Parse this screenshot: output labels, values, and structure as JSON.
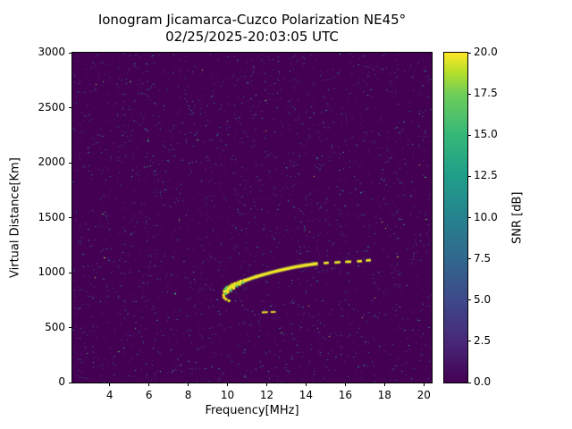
{
  "figure": {
    "title_line1": "Ionogram Jicamarca-Cuzco Polarization NE45°",
    "title_line2": "02/25/2025-20:03:05 UTC",
    "xlabel": "Frequency[MHz]",
    "ylabel": "Virtual Distance[Km]",
    "colorbar_label": "SNR [dB]"
  },
  "chart_data": {
    "type": "heatmap",
    "title": "Ionogram Jicamarca-Cuzco Polarization NE45°",
    "subtitle": "02/25/2025-20:03:05 UTC",
    "xlabel": "Frequency[MHz]",
    "ylabel": "Virtual Distance[Km]",
    "xlim": [
      2.1,
      20.4
    ],
    "ylim": [
      0,
      3000
    ],
    "x_ticks": [
      4,
      6,
      8,
      10,
      12,
      14,
      16,
      18,
      20
    ],
    "y_ticks": [
      0,
      500,
      1000,
      1500,
      2000,
      2500,
      3000
    ],
    "colorbar": {
      "label": "SNR [dB]",
      "min": 0,
      "max": 20,
      "tick_labels": [
        "0.0",
        "2.5",
        "5.0",
        "7.5",
        "10.0",
        "12.5",
        "15.0",
        "17.5",
        "20.0"
      ],
      "colormap": "viridis"
    },
    "background_snr_db": 0,
    "noise": {
      "seed": 42,
      "count": 2300,
      "description": "sparse low-SNR speckle noise over dark viridis background"
    },
    "echo_trace_segments_mhz_km": [
      [
        [
          9.8,
          815
        ],
        [
          10.0,
          845
        ],
        [
          10.2,
          868
        ],
        [
          10.4,
          888
        ],
        [
          10.6,
          905
        ],
        [
          10.8,
          920
        ],
        [
          11.0,
          934
        ],
        [
          11.2,
          947
        ],
        [
          11.4,
          959
        ],
        [
          11.6,
          970
        ],
        [
          11.8,
          980
        ],
        [
          12.0,
          990
        ],
        [
          12.2,
          1000
        ],
        [
          12.4,
          1009
        ],
        [
          12.6,
          1018
        ],
        [
          12.8,
          1026
        ],
        [
          13.0,
          1034
        ],
        [
          13.2,
          1042
        ],
        [
          13.4,
          1049
        ],
        [
          13.6,
          1056
        ],
        [
          13.8,
          1062
        ],
        [
          14.0,
          1068
        ],
        [
          14.2,
          1073
        ],
        [
          14.4,
          1078
        ],
        [
          14.6,
          1082
        ]
      ],
      [
        [
          14.9,
          1086
        ],
        [
          15.15,
          1089
        ]
      ],
      [
        [
          15.45,
          1092
        ],
        [
          15.75,
          1095
        ]
      ],
      [
        [
          16.0,
          1097
        ],
        [
          16.3,
          1100
        ]
      ],
      [
        [
          16.6,
          1103
        ],
        [
          16.85,
          1105
        ]
      ],
      [
        [
          17.05,
          1110
        ],
        [
          17.3,
          1114
        ]
      ]
    ],
    "secondary_echo_segments_mhz_km": [
      [
        [
          11.75,
          638
        ],
        [
          12.05,
          640
        ]
      ],
      [
        [
          12.2,
          641
        ],
        [
          12.45,
          643
        ]
      ]
    ],
    "echo_foot_cluster_mhz_km": [
      [
        9.78,
        800
      ],
      [
        9.82,
        835
      ],
      [
        9.86,
        856
      ],
      [
        9.9,
        812
      ],
      [
        9.95,
        872
      ],
      [
        10.0,
        826
      ],
      [
        10.05,
        862
      ],
      [
        10.1,
        882
      ],
      [
        10.15,
        842
      ],
      [
        10.22,
        896
      ],
      [
        10.3,
        862
      ],
      [
        10.36,
        906
      ],
      [
        10.45,
        882
      ],
      [
        10.52,
        916
      ],
      [
        10.6,
        896
      ],
      [
        10.66,
        926
      ],
      [
        10.76,
        912
      ],
      [
        10.86,
        936
      ],
      [
        9.8,
        778
      ],
      [
        9.9,
        762
      ],
      [
        10.05,
        748
      ]
    ],
    "colors": {
      "background": "#440154",
      "trace_peak": "#fde725",
      "trace_edge": "#a0da39",
      "noise_palette": [
        "#472a7a",
        "#414487",
        "#355f8d",
        "#2a788e",
        "#21918c",
        "#44bf70",
        "#bddf26"
      ]
    }
  }
}
